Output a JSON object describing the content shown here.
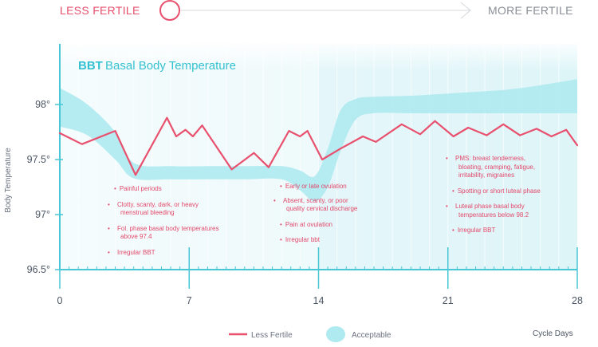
{
  "fertility_scale": {
    "left_label": "LESS FERTILE",
    "right_label": "MORE FERTILE",
    "indicator_position": 0.0
  },
  "chart_data": {
    "type": "line",
    "title_prefix": "BBT",
    "title": "Basal Body Temperature",
    "ylabel": "Body Temperature",
    "xlabel_right": "Cycle Days",
    "xlim": [
      0,
      28
    ],
    "ylim": [
      96.5,
      98.5
    ],
    "x_ticks": [
      0,
      7,
      14,
      21,
      28
    ],
    "y_ticks": [
      96.5,
      97,
      97.5,
      98
    ],
    "y_tick_labels": [
      "96.5°",
      "97°",
      "97.5°",
      "98°"
    ],
    "series": [
      {
        "name": "Less Fertile",
        "color": "#e8506e",
        "x": [
          0,
          1.2,
          3.0,
          4.1,
          5.8,
          6.3,
          6.8,
          7.2,
          7.7,
          9.3,
          10.5,
          11.3,
          12.4,
          13.0,
          13.4,
          14.2,
          15.2,
          16.4,
          17.1,
          18.5,
          19.5,
          20.3,
          21.3,
          22.1,
          23.1,
          24.0,
          24.9,
          25.8,
          26.6,
          27.4,
          28.0
        ],
        "y": [
          97.74,
          97.64,
          97.76,
          97.36,
          97.88,
          97.71,
          97.77,
          97.71,
          97.81,
          97.41,
          97.56,
          97.43,
          97.76,
          97.71,
          97.76,
          97.5,
          97.6,
          97.71,
          97.66,
          97.82,
          97.73,
          97.85,
          97.71,
          97.79,
          97.72,
          97.82,
          97.72,
          97.78,
          97.71,
          97.77,
          97.63
        ]
      }
    ],
    "acceptable_band": {
      "name": "Acceptable",
      "color": "#aeeaf0",
      "x": [
        0,
        1.5,
        3,
        4,
        6,
        8,
        10,
        12,
        13,
        13.8,
        14.5,
        15.2,
        16,
        17,
        19,
        21,
        23,
        25,
        28
      ],
      "upper": [
        98.15,
        98.0,
        97.75,
        97.47,
        97.44,
        97.44,
        97.44,
        97.44,
        97.4,
        97.35,
        97.6,
        97.95,
        98.05,
        98.07,
        98.08,
        98.1,
        98.12,
        98.15,
        98.23
      ],
      "lower": [
        97.8,
        97.72,
        97.5,
        97.33,
        97.32,
        97.32,
        97.32,
        97.32,
        97.22,
        97.12,
        97.25,
        97.58,
        97.86,
        97.92,
        97.92,
        97.92,
        97.92,
        97.92,
        97.92
      ]
    },
    "shaded_region_x": [
      14,
      28
    ],
    "annotations": [
      {
        "items": [
          "Painful periods",
          "Clotty, scanty, dark, or heavy menstrual bleeding",
          "Fol. phase basal body temperatures above 97.4",
          "Irregular BBT"
        ]
      },
      {
        "items": [
          "Early or late ovulation",
          "Absent, scanty, or poor quality cervical discharge",
          "Pain at ovulation",
          "Irregular bbt"
        ]
      },
      {
        "items": [
          "PMS: breast tenderness, bloating, cramping, fatigue, irritability, migraines",
          "Spotting or short luteal phase",
          "Luteal phase basal body temperatures below 98.2",
          "Irregular BBT"
        ]
      }
    ],
    "legend": [
      {
        "label": "Less Fertile",
        "kind": "line",
        "color": "#e8506e"
      },
      {
        "label": "Acceptable",
        "kind": "band",
        "color": "#aeeaf0"
      }
    ],
    "legend_position": "bottom-center"
  }
}
